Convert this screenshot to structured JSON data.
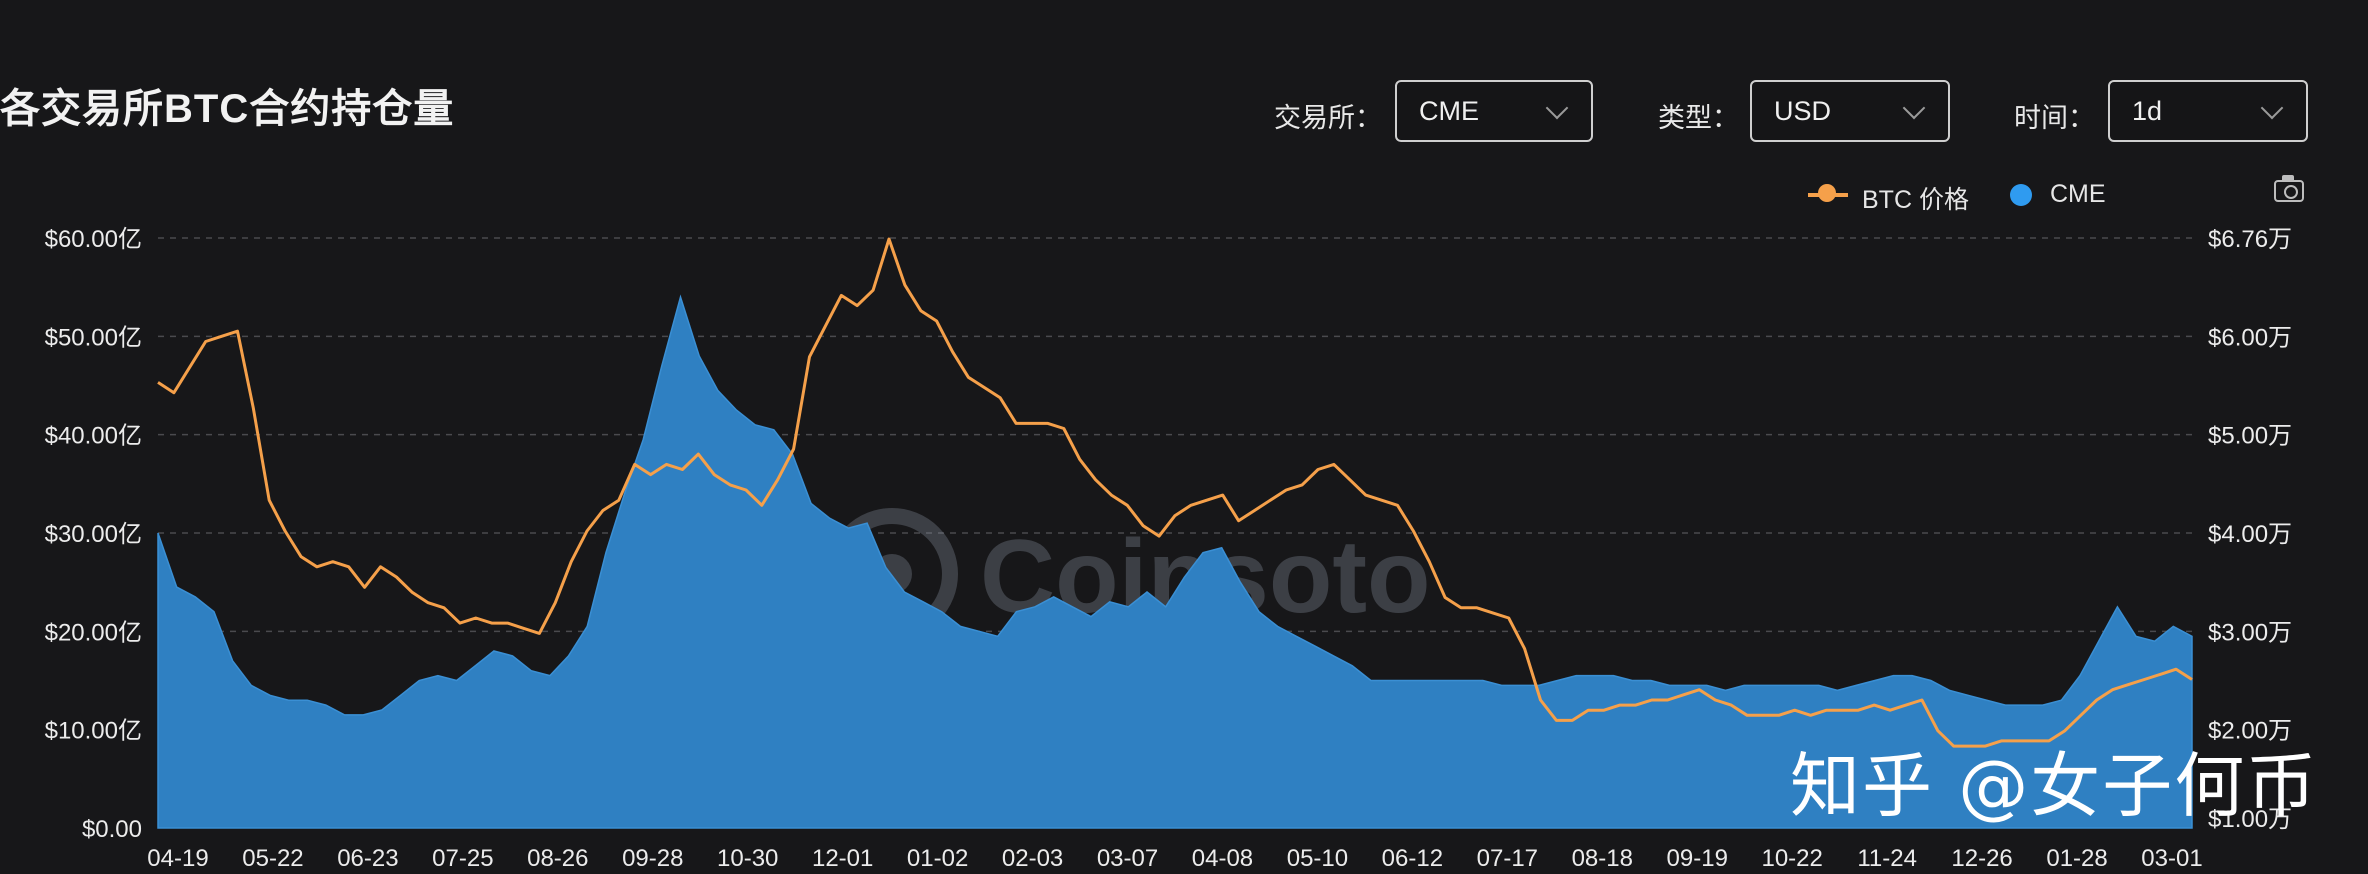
{
  "header": {
    "title": "各交易所BTC合约持仓量",
    "exchange_label": "交易所：",
    "exchange_value": "CME",
    "type_label": "类型：",
    "type_value": "USD",
    "time_label": "时间：",
    "time_value": "1d"
  },
  "colors": {
    "background": "#171719",
    "area": "#2f80c2",
    "price_line": "#f5a04a",
    "legend_cme": "#2f9bf0"
  },
  "watermark": {
    "logo_text": "Coinsoto",
    "author_text": "知乎 @女子何币"
  },
  "chart_data": {
    "type": "area",
    "legend_position": "top-right",
    "grid": "horizontal-dashed",
    "x_ticks": [
      "04-19",
      "05-22",
      "06-23",
      "07-25",
      "08-26",
      "09-28",
      "10-30",
      "12-01",
      "01-02",
      "02-03",
      "03-07",
      "04-08",
      "05-10",
      "06-12",
      "07-17",
      "08-18",
      "09-19",
      "10-22",
      "11-24",
      "12-26",
      "01-28",
      "03-01"
    ],
    "y_left": {
      "ticks": [
        "$0.00",
        "$10.00亿",
        "$20.00亿",
        "$30.00亿",
        "$40.00亿",
        "$50.00亿",
        "$60.00亿"
      ],
      "range": [
        0,
        60
      ]
    },
    "y_right": {
      "ticks": [
        "$1.00万",
        "$2.00万",
        "$3.00万",
        "$4.00万",
        "$5.00万",
        "$6.00万",
        "$6.76万"
      ],
      "range": [
        1.0,
        6.76
      ]
    },
    "series": [
      {
        "name": "CME",
        "axis": "left",
        "values": [
          30.0,
          24.5,
          23.5,
          22.0,
          17.0,
          14.5,
          13.5,
          13.0,
          13.0,
          12.5,
          11.5,
          11.5,
          12.0,
          13.5,
          15.0,
          15.5,
          15.0,
          16.5,
          18.0,
          17.5,
          16.0,
          15.5,
          17.5,
          20.5,
          28.0,
          34.0,
          39.5,
          47.0,
          54.0,
          48.0,
          44.5,
          42.5,
          41.0,
          40.5,
          38.0,
          33.0,
          31.5,
          30.5,
          31.0,
          26.5,
          24.0,
          23.0,
          22.0,
          20.5,
          20.0,
          19.5,
          22.0,
          22.5,
          23.5,
          22.5,
          21.5,
          23.0,
          22.5,
          24.0,
          22.5,
          25.5,
          28.0,
          28.5,
          25.0,
          22.0,
          20.5,
          19.5,
          18.5,
          17.5,
          16.5,
          15.0,
          15.0,
          15.0,
          15.0,
          15.0,
          15.0,
          15.0,
          14.5,
          14.5,
          14.5,
          15.0,
          15.5,
          15.5,
          15.5,
          15.0,
          15.0,
          14.5,
          14.5,
          14.5,
          14.0,
          14.5,
          14.5,
          14.5,
          14.5,
          14.5,
          14.0,
          14.5,
          15.0,
          15.5,
          15.5,
          15.0,
          14.0,
          13.5,
          13.0,
          12.5,
          12.5,
          12.5,
          13.0,
          15.5,
          19.0,
          22.5,
          19.5,
          19.0,
          20.5,
          19.5
        ]
      },
      {
        "name": "BTC 价格",
        "axis": "right",
        "values": [
          5.35,
          5.25,
          5.5,
          5.75,
          5.8,
          5.85,
          5.1,
          4.2,
          3.9,
          3.65,
          3.55,
          3.6,
          3.55,
          3.35,
          3.55,
          3.45,
          3.3,
          3.2,
          3.15,
          3.0,
          3.05,
          3.0,
          3.0,
          2.95,
          2.9,
          3.2,
          3.6,
          3.9,
          4.1,
          4.2,
          4.55,
          4.45,
          4.55,
          4.5,
          4.65,
          4.45,
          4.35,
          4.3,
          4.15,
          4.4,
          4.7,
          5.6,
          5.9,
          6.2,
          6.1,
          6.25,
          6.75,
          6.3,
          6.05,
          5.95,
          5.65,
          5.4,
          5.3,
          5.2,
          4.95,
          4.95,
          4.95,
          4.9,
          4.6,
          4.4,
          4.25,
          4.15,
          3.95,
          3.85,
          4.05,
          4.15,
          4.2,
          4.25,
          4.0,
          4.1,
          4.2,
          4.3,
          4.35,
          4.5,
          4.55,
          4.4,
          4.25,
          4.2,
          4.15,
          3.9,
          3.6,
          3.25,
          3.15,
          3.15,
          3.1,
          3.05,
          2.75,
          2.25,
          2.05,
          2.05,
          2.15,
          2.15,
          2.2,
          2.2,
          2.25,
          2.25,
          2.3,
          2.35,
          2.25,
          2.2,
          2.1,
          2.1,
          2.1,
          2.15,
          2.1,
          2.15,
          2.15,
          2.15,
          2.2,
          2.15,
          2.2,
          2.25,
          1.95,
          1.8,
          1.8,
          1.8,
          1.85,
          1.85,
          1.85,
          1.85,
          1.95,
          2.1,
          2.25,
          2.35,
          2.4,
          2.45,
          2.5,
          2.55,
          2.45
        ]
      }
    ]
  }
}
